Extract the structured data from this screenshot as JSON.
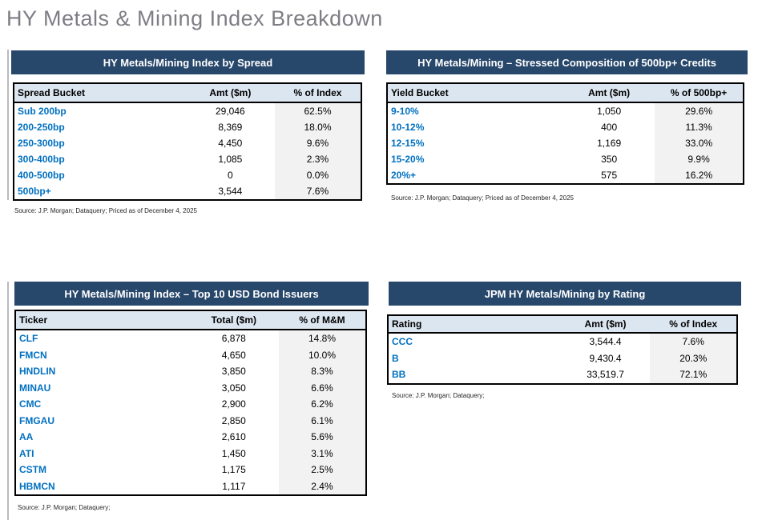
{
  "page": {
    "title": "HY Metals & Mining Index Breakdown"
  },
  "colors": {
    "navy_header": "#27476b",
    "table_header_bg": "#dce6f1",
    "pct_column_bg": "#f2f2f2",
    "row_label_blue": "#0070c0",
    "title_gray": "#7d7d84"
  },
  "tables": [
    {
      "id": "index-by-spread",
      "title": "HY Metals/Mining Index by Spread",
      "columns": [
        "Spread Bucket",
        "Amt ($m)",
        "% of Index"
      ],
      "rows": [
        [
          "Sub 200bp",
          "29,046",
          "62.5%"
        ],
        [
          "200-250bp",
          "8,369",
          "18.0%"
        ],
        [
          "250-300bp",
          "4,450",
          "9.6%"
        ],
        [
          "300-400bp",
          "1,085",
          "2.3%"
        ],
        [
          "400-500bp",
          "0",
          "0.0%"
        ],
        [
          "500bp+",
          "3,544",
          "7.6%"
        ]
      ],
      "source": "Source: J.P. Morgan; Dataquery; Priced as of December 4, 2025"
    },
    {
      "id": "stressed-composition",
      "title": "HY Metals/Mining – Stressed Composition of 500bp+ Credits",
      "columns": [
        "Yield Bucket",
        "Amt ($m)",
        "% of 500bp+"
      ],
      "rows": [
        [
          "9-10%",
          "1,050",
          "29.6%"
        ],
        [
          "10-12%",
          "400",
          "11.3%"
        ],
        [
          "12-15%",
          "1,169",
          "33.0%"
        ],
        [
          "15-20%",
          "350",
          "9.9%"
        ],
        [
          "20%+",
          "575",
          "16.2%"
        ]
      ],
      "source": "Source: J.P. Morgan; Dataquery; Priced as of December 4, 2025"
    },
    {
      "id": "top-10-usd-bond-issuers",
      "title": "HY Metals/Mining Index – Top 10 USD Bond Issuers",
      "columns": [
        "Ticker",
        "Total ($m)",
        "% of M&M"
      ],
      "rows": [
        [
          "CLF",
          "6,878",
          "14.8%"
        ],
        [
          "FMCN",
          "4,650",
          "10.0%"
        ],
        [
          "HNDLIN",
          "3,850",
          "8.3%"
        ],
        [
          "MINAU",
          "3,050",
          "6.6%"
        ],
        [
          "CMC",
          "2,900",
          "6.2%"
        ],
        [
          "FMGAU",
          "2,850",
          "6.1%"
        ],
        [
          "AA",
          "2,610",
          "5.6%"
        ],
        [
          "ATI",
          "1,450",
          "3.1%"
        ],
        [
          "CSTM",
          "1,175",
          "2.5%"
        ],
        [
          "HBMCN",
          "1,117",
          "2.4%"
        ]
      ],
      "source": "Source: J.P. Morgan; Dataquery;"
    },
    {
      "id": "by-rating",
      "title": "JPM HY Metals/Mining by Rating",
      "columns": [
        "Rating",
        "Amt ($m)",
        "% of Index"
      ],
      "rows": [
        [
          "CCC",
          "3,544.4",
          "7.6%"
        ],
        [
          "B",
          "9,430.4",
          "20.3%"
        ],
        [
          "BB",
          "33,519.7",
          "72.1%"
        ]
      ],
      "source": "Source: J.P. Morgan; Dataquery;"
    }
  ]
}
